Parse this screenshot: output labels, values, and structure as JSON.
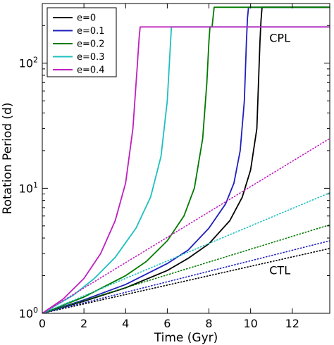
{
  "chart_data": {
    "type": "line",
    "xlabel": "Time (Gyr)",
    "ylabel": "Rotation Period (d)",
    "xlim": [
      0,
      13.8
    ],
    "ylim": [
      1,
      300
    ],
    "yscale": "log",
    "xticks": [
      "0",
      "2",
      "4",
      "6",
      "8",
      "10",
      "12"
    ],
    "xtick_values": [
      0,
      2,
      4,
      6,
      8,
      10,
      12
    ],
    "yticks": [
      "10^0",
      "10^1",
      "10^2"
    ],
    "ytick_values": [
      1,
      10,
      100
    ],
    "grid": false,
    "legend_position": "top-left",
    "annotations": [
      {
        "text": "CPL",
        "x": 10.9,
        "y": 148
      },
      {
        "text": "CTL",
        "x": 10.9,
        "y": 2.05
      }
    ],
    "series": [
      {
        "name": "e=0",
        "model": "CPL",
        "color": "#000000",
        "style": "solid",
        "x": [
          0,
          2,
          4,
          6,
          7,
          8,
          9,
          9.6,
          10.0,
          10.3,
          10.45,
          10.5,
          10.55,
          13.8
        ],
        "y": [
          1,
          1.25,
          1.6,
          2.2,
          2.75,
          3.6,
          5.5,
          8.5,
          14,
          30,
          150,
          220,
          280,
          280
        ]
      },
      {
        "name": "e=0.1",
        "model": "CPL",
        "color": "#1f1fbf",
        "style": "solid",
        "x": [
          0,
          2,
          4,
          6,
          7,
          8,
          8.8,
          9.2,
          9.5,
          9.7,
          9.8,
          9.85,
          9.9,
          13.8
        ],
        "y": [
          1,
          1.28,
          1.7,
          2.5,
          3.2,
          4.8,
          7.5,
          11,
          20,
          50,
          150,
          230,
          280,
          280
        ]
      },
      {
        "name": "e=0.2",
        "model": "CPL",
        "color": "#007a00",
        "style": "solid",
        "x": [
          0,
          2,
          4,
          5,
          6,
          6.8,
          7.3,
          7.7,
          7.9,
          8.0,
          8.05,
          8.15,
          8.25,
          13.8
        ],
        "y": [
          1,
          1.35,
          2.0,
          2.6,
          3.8,
          6.0,
          10,
          25,
          70,
          150,
          195,
          195,
          280,
          280
        ]
      },
      {
        "name": "e=0.3",
        "model": "CPL",
        "color": "#1fbfbf",
        "style": "solid",
        "x": [
          0,
          1.5,
          2.5,
          3.5,
          4.5,
          5.2,
          5.7,
          6.0,
          6.15,
          6.2,
          13.8
        ],
        "y": [
          1,
          1.4,
          1.9,
          2.8,
          4.8,
          8.5,
          18,
          50,
          140,
          195,
          195
        ]
      },
      {
        "name": "e=0.4",
        "model": "CPL",
        "color": "#bf1fbf",
        "style": "solid",
        "x": [
          0,
          1,
          2,
          2.8,
          3.5,
          4.0,
          4.35,
          4.55,
          4.65,
          4.7,
          13.8
        ],
        "y": [
          1,
          1.3,
          1.9,
          3.0,
          5.5,
          11,
          30,
          90,
          160,
          195,
          195
        ]
      },
      {
        "name": "e=0",
        "model": "CTL",
        "color": "#000000",
        "style": "dotted",
        "x": [
          0,
          13.8
        ],
        "y": [
          1,
          3.3
        ]
      },
      {
        "name": "e=0.1",
        "model": "CTL",
        "color": "#1f1fbf",
        "style": "dotted",
        "x": [
          0,
          13.8
        ],
        "y": [
          1,
          3.8
        ]
      },
      {
        "name": "e=0.2",
        "model": "CTL",
        "color": "#007a00",
        "style": "dotted",
        "x": [
          0,
          13.8
        ],
        "y": [
          1,
          5.1
        ]
      },
      {
        "name": "e=0.3",
        "model": "CTL",
        "color": "#1fbfbf",
        "style": "dotted",
        "x": [
          0,
          13.8
        ],
        "y": [
          1,
          9.2
        ]
      },
      {
        "name": "e=0.4",
        "model": "CTL",
        "color": "#bf1fbf",
        "style": "dotted",
        "x": [
          0,
          13.8
        ],
        "y": [
          1,
          25
        ]
      }
    ],
    "legend": [
      {
        "label": "e=0",
        "color": "#000000"
      },
      {
        "label": "e=0.1",
        "color": "#1f1fbf"
      },
      {
        "label": "e=0.2",
        "color": "#007a00"
      },
      {
        "label": "e=0.3",
        "color": "#1fbfbf"
      },
      {
        "label": "e=0.4",
        "color": "#bf1fbf"
      }
    ]
  }
}
